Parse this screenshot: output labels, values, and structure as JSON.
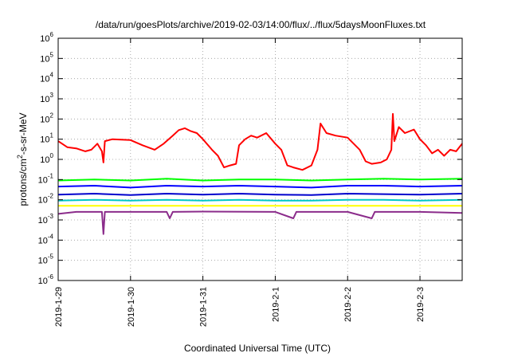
{
  "chart_data": {
    "type": "line",
    "title": "/data/run/goesPlots/archive/2019-02-03/14:00/flux/../flux/5daysMoonFluxes.txt",
    "xlabel": "Coordinated Universal Time (UTC)",
    "ylabel": "protons/cm2-s-sr-MeV",
    "ylabel_parts": {
      "pre": "protons/cm",
      "sup": "2",
      "post": "-s-sr-MeV"
    },
    "yscale": "log",
    "ylim": [
      1e-06,
      1000000.0
    ],
    "xlim": [
      "2019-01-29 00:00",
      "2019-02-03 14:00"
    ],
    "grid": true,
    "legend": "none",
    "x_ticks": [
      "2019-1-29",
      "2019-1-30",
      "2019-1-31",
      "2019-2-1",
      "2019-2-2",
      "2019-2-3"
    ],
    "y_ticks": [
      {
        "base": "10",
        "exp": "-6"
      },
      {
        "base": "10",
        "exp": "-5"
      },
      {
        "base": "10",
        "exp": "-4"
      },
      {
        "base": "10",
        "exp": "-3"
      },
      {
        "base": "10",
        "exp": "-2"
      },
      {
        "base": "10",
        "exp": "-1"
      },
      {
        "base": "10",
        "exp": "0"
      },
      {
        "base": "10",
        "exp": "1"
      },
      {
        "base": "10",
        "exp": "2"
      },
      {
        "base": "10",
        "exp": "3"
      },
      {
        "base": "10",
        "exp": "4"
      },
      {
        "base": "10",
        "exp": "5"
      },
      {
        "base": "10",
        "exp": "6"
      }
    ],
    "series": [
      {
        "color": "#ff0000",
        "points": [
          [
            "2019-01-29 00:00",
            8
          ],
          [
            "2019-01-29 03:00",
            4
          ],
          [
            "2019-01-29 06:00",
            3.5
          ],
          [
            "2019-01-29 09:00",
            2.5
          ],
          [
            "2019-01-29 11:00",
            3
          ],
          [
            "2019-01-29 13:00",
            6
          ],
          [
            "2019-01-29 14:30",
            2.5
          ],
          [
            "2019-01-29 15:00",
            0.7
          ],
          [
            "2019-01-29 15:30",
            8
          ],
          [
            "2019-01-29 18:00",
            10
          ],
          [
            "2019-01-30 00:00",
            9
          ],
          [
            "2019-01-30 04:00",
            5
          ],
          [
            "2019-01-30 08:00",
            3
          ],
          [
            "2019-01-30 11:00",
            6
          ],
          [
            "2019-01-30 14:00",
            15
          ],
          [
            "2019-01-30 16:00",
            28
          ],
          [
            "2019-01-30 18:00",
            35
          ],
          [
            "2019-01-30 20:00",
            25
          ],
          [
            "2019-01-30 22:00",
            20
          ],
          [
            "2019-01-31 00:00",
            10
          ],
          [
            "2019-01-31 03:00",
            3
          ],
          [
            "2019-01-31 05:00",
            1.5
          ],
          [
            "2019-01-31 07:00",
            0.4
          ],
          [
            "2019-01-31 09:00",
            0.5
          ],
          [
            "2019-01-31 11:00",
            0.6
          ],
          [
            "2019-01-31 12:00",
            5
          ],
          [
            "2019-01-31 14:00",
            10
          ],
          [
            "2019-01-31 16:00",
            15
          ],
          [
            "2019-01-31 18:00",
            12
          ],
          [
            "2019-01-31 21:00",
            20
          ],
          [
            "2019-02-01 00:00",
            6
          ],
          [
            "2019-02-01 02:00",
            3
          ],
          [
            "2019-02-01 04:00",
            0.5
          ],
          [
            "2019-02-01 06:00",
            0.4
          ],
          [
            "2019-02-01 09:00",
            0.3
          ],
          [
            "2019-02-01 12:00",
            0.5
          ],
          [
            "2019-02-01 14:00",
            3
          ],
          [
            "2019-02-01 15:00",
            60
          ],
          [
            "2019-02-01 17:00",
            20
          ],
          [
            "2019-02-01 20:00",
            15
          ],
          [
            "2019-02-02 00:00",
            12
          ],
          [
            "2019-02-02 04:00",
            3
          ],
          [
            "2019-02-02 06:00",
            0.8
          ],
          [
            "2019-02-02 08:00",
            0.6
          ],
          [
            "2019-02-02 11:00",
            0.7
          ],
          [
            "2019-02-02 13:00",
            1
          ],
          [
            "2019-02-02 14:30",
            3
          ],
          [
            "2019-02-02 15:00",
            180
          ],
          [
            "2019-02-02 15:30",
            8
          ],
          [
            "2019-02-02 17:00",
            40
          ],
          [
            "2019-02-02 19:00",
            20
          ],
          [
            "2019-02-02 22:00",
            30
          ],
          [
            "2019-02-03 00:00",
            10
          ],
          [
            "2019-02-03 02:00",
            5
          ],
          [
            "2019-02-03 04:00",
            2
          ],
          [
            "2019-02-03 06:00",
            3
          ],
          [
            "2019-02-03 08:00",
            1.5
          ],
          [
            "2019-02-03 10:00",
            3
          ],
          [
            "2019-02-03 12:00",
            2.5
          ],
          [
            "2019-02-03 14:00",
            6
          ]
        ]
      },
      {
        "color": "#00ff00",
        "points": [
          [
            "2019-01-29 00:00",
            0.09
          ],
          [
            "2019-01-29 12:00",
            0.1
          ],
          [
            "2019-01-30 00:00",
            0.09
          ],
          [
            "2019-01-30 12:00",
            0.11
          ],
          [
            "2019-01-31 00:00",
            0.09
          ],
          [
            "2019-01-31 12:00",
            0.1
          ],
          [
            "2019-02-01 00:00",
            0.1
          ],
          [
            "2019-02-01 12:00",
            0.09
          ],
          [
            "2019-02-02 00:00",
            0.1
          ],
          [
            "2019-02-02 12:00",
            0.11
          ],
          [
            "2019-02-03 00:00",
            0.1
          ],
          [
            "2019-02-03 14:00",
            0.11
          ]
        ]
      },
      {
        "color": "#0000ff",
        "points": [
          [
            "2019-01-29 00:00",
            0.045
          ],
          [
            "2019-01-29 12:00",
            0.05
          ],
          [
            "2019-01-30 00:00",
            0.04
          ],
          [
            "2019-01-30 12:00",
            0.05
          ],
          [
            "2019-01-31 00:00",
            0.045
          ],
          [
            "2019-01-31 12:00",
            0.05
          ],
          [
            "2019-02-01 00:00",
            0.045
          ],
          [
            "2019-02-01 12:00",
            0.04
          ],
          [
            "2019-02-02 00:00",
            0.05
          ],
          [
            "2019-02-02 12:00",
            0.05
          ],
          [
            "2019-02-03 00:00",
            0.045
          ],
          [
            "2019-02-03 14:00",
            0.05
          ]
        ]
      },
      {
        "color": "#0000cd",
        "points": [
          [
            "2019-01-29 00:00",
            0.018
          ],
          [
            "2019-01-29 12:00",
            0.02
          ],
          [
            "2019-01-30 00:00",
            0.017
          ],
          [
            "2019-01-30 12:00",
            0.02
          ],
          [
            "2019-01-31 00:00",
            0.018
          ],
          [
            "2019-01-31 12:00",
            0.02
          ],
          [
            "2019-02-01 00:00",
            0.018
          ],
          [
            "2019-02-01 12:00",
            0.017
          ],
          [
            "2019-02-02 00:00",
            0.02
          ],
          [
            "2019-02-02 12:00",
            0.019
          ],
          [
            "2019-02-03 00:00",
            0.018
          ],
          [
            "2019-02-03 14:00",
            0.02
          ]
        ]
      },
      {
        "color": "#00c8c8",
        "points": [
          [
            "2019-01-29 00:00",
            0.009
          ],
          [
            "2019-01-29 12:00",
            0.01
          ],
          [
            "2019-01-30 00:00",
            0.009
          ],
          [
            "2019-01-30 12:00",
            0.01
          ],
          [
            "2019-01-31 00:00",
            0.009
          ],
          [
            "2019-01-31 12:00",
            0.01
          ],
          [
            "2019-02-01 00:00",
            0.009
          ],
          [
            "2019-02-01 12:00",
            0.009
          ],
          [
            "2019-02-02 00:00",
            0.01
          ],
          [
            "2019-02-02 12:00",
            0.01
          ],
          [
            "2019-02-03 00:00",
            0.009
          ],
          [
            "2019-02-03 14:00",
            0.01
          ]
        ]
      },
      {
        "color": "#ffff00",
        "points": [
          [
            "2019-01-29 00:00",
            0.005
          ],
          [
            "2019-02-03 14:00",
            0.005
          ]
        ]
      },
      {
        "color": "#8b2c8b",
        "points": [
          [
            "2019-01-29 00:00",
            0.002
          ],
          [
            "2019-01-29 06:00",
            0.0025
          ],
          [
            "2019-01-29 14:30",
            0.0025
          ],
          [
            "2019-01-29 15:00",
            0.0002
          ],
          [
            "2019-01-29 15:30",
            0.0025
          ],
          [
            "2019-01-30 12:00",
            0.0025
          ],
          [
            "2019-01-30 13:00",
            0.0012
          ],
          [
            "2019-01-30 14:00",
            0.0025
          ],
          [
            "2019-01-31 00:00",
            0.0026
          ],
          [
            "2019-02-01 00:00",
            0.0025
          ],
          [
            "2019-02-01 06:00",
            0.0012
          ],
          [
            "2019-02-01 07:00",
            0.0025
          ],
          [
            "2019-02-02 00:00",
            0.0025
          ],
          [
            "2019-02-02 08:00",
            0.0012
          ],
          [
            "2019-02-02 09:00",
            0.0025
          ],
          [
            "2019-02-03 00:00",
            0.0025
          ],
          [
            "2019-02-03 14:00",
            0.0022
          ]
        ]
      }
    ]
  }
}
